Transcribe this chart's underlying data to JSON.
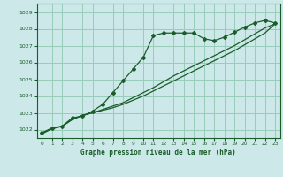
{
  "background_color": "#cce8e8",
  "grid_color": "#99ccbb",
  "line_color": "#1a5c2a",
  "marker_color": "#1a5c2a",
  "title": "Graphe pression niveau de la mer (hPa)",
  "ylim_min": 1021.5,
  "ylim_max": 1029.5,
  "xlim_min": -0.5,
  "xlim_max": 23.5,
  "yticks": [
    1022,
    1023,
    1024,
    1025,
    1026,
    1027,
    1028,
    1029
  ],
  "xticks": [
    0,
    1,
    2,
    3,
    4,
    5,
    6,
    7,
    8,
    9,
    10,
    11,
    12,
    13,
    14,
    15,
    16,
    17,
    18,
    19,
    20,
    21,
    22,
    23
  ],
  "series1": [
    1021.8,
    1022.1,
    1022.2,
    1022.7,
    1022.8,
    1023.1,
    1023.5,
    1024.2,
    1024.9,
    1025.6,
    1026.3,
    1027.6,
    1027.75,
    1027.75,
    1027.75,
    1027.75,
    1027.4,
    1027.3,
    1027.5,
    1027.8,
    1028.1,
    1028.35,
    1028.5,
    1028.35
  ],
  "series2": [
    1021.8,
    1022.05,
    1022.2,
    1022.6,
    1022.85,
    1023.0,
    1023.2,
    1023.4,
    1023.6,
    1023.9,
    1024.2,
    1024.5,
    1024.85,
    1025.2,
    1025.5,
    1025.8,
    1026.1,
    1026.4,
    1026.7,
    1027.0,
    1027.35,
    1027.7,
    1028.05,
    1028.3
  ],
  "series3": [
    1021.75,
    1022.05,
    1022.2,
    1022.6,
    1022.85,
    1023.0,
    1023.15,
    1023.3,
    1023.5,
    1023.75,
    1024.0,
    1024.3,
    1024.6,
    1024.9,
    1025.2,
    1025.5,
    1025.8,
    1026.1,
    1026.4,
    1026.7,
    1027.05,
    1027.4,
    1027.75,
    1028.3
  ]
}
